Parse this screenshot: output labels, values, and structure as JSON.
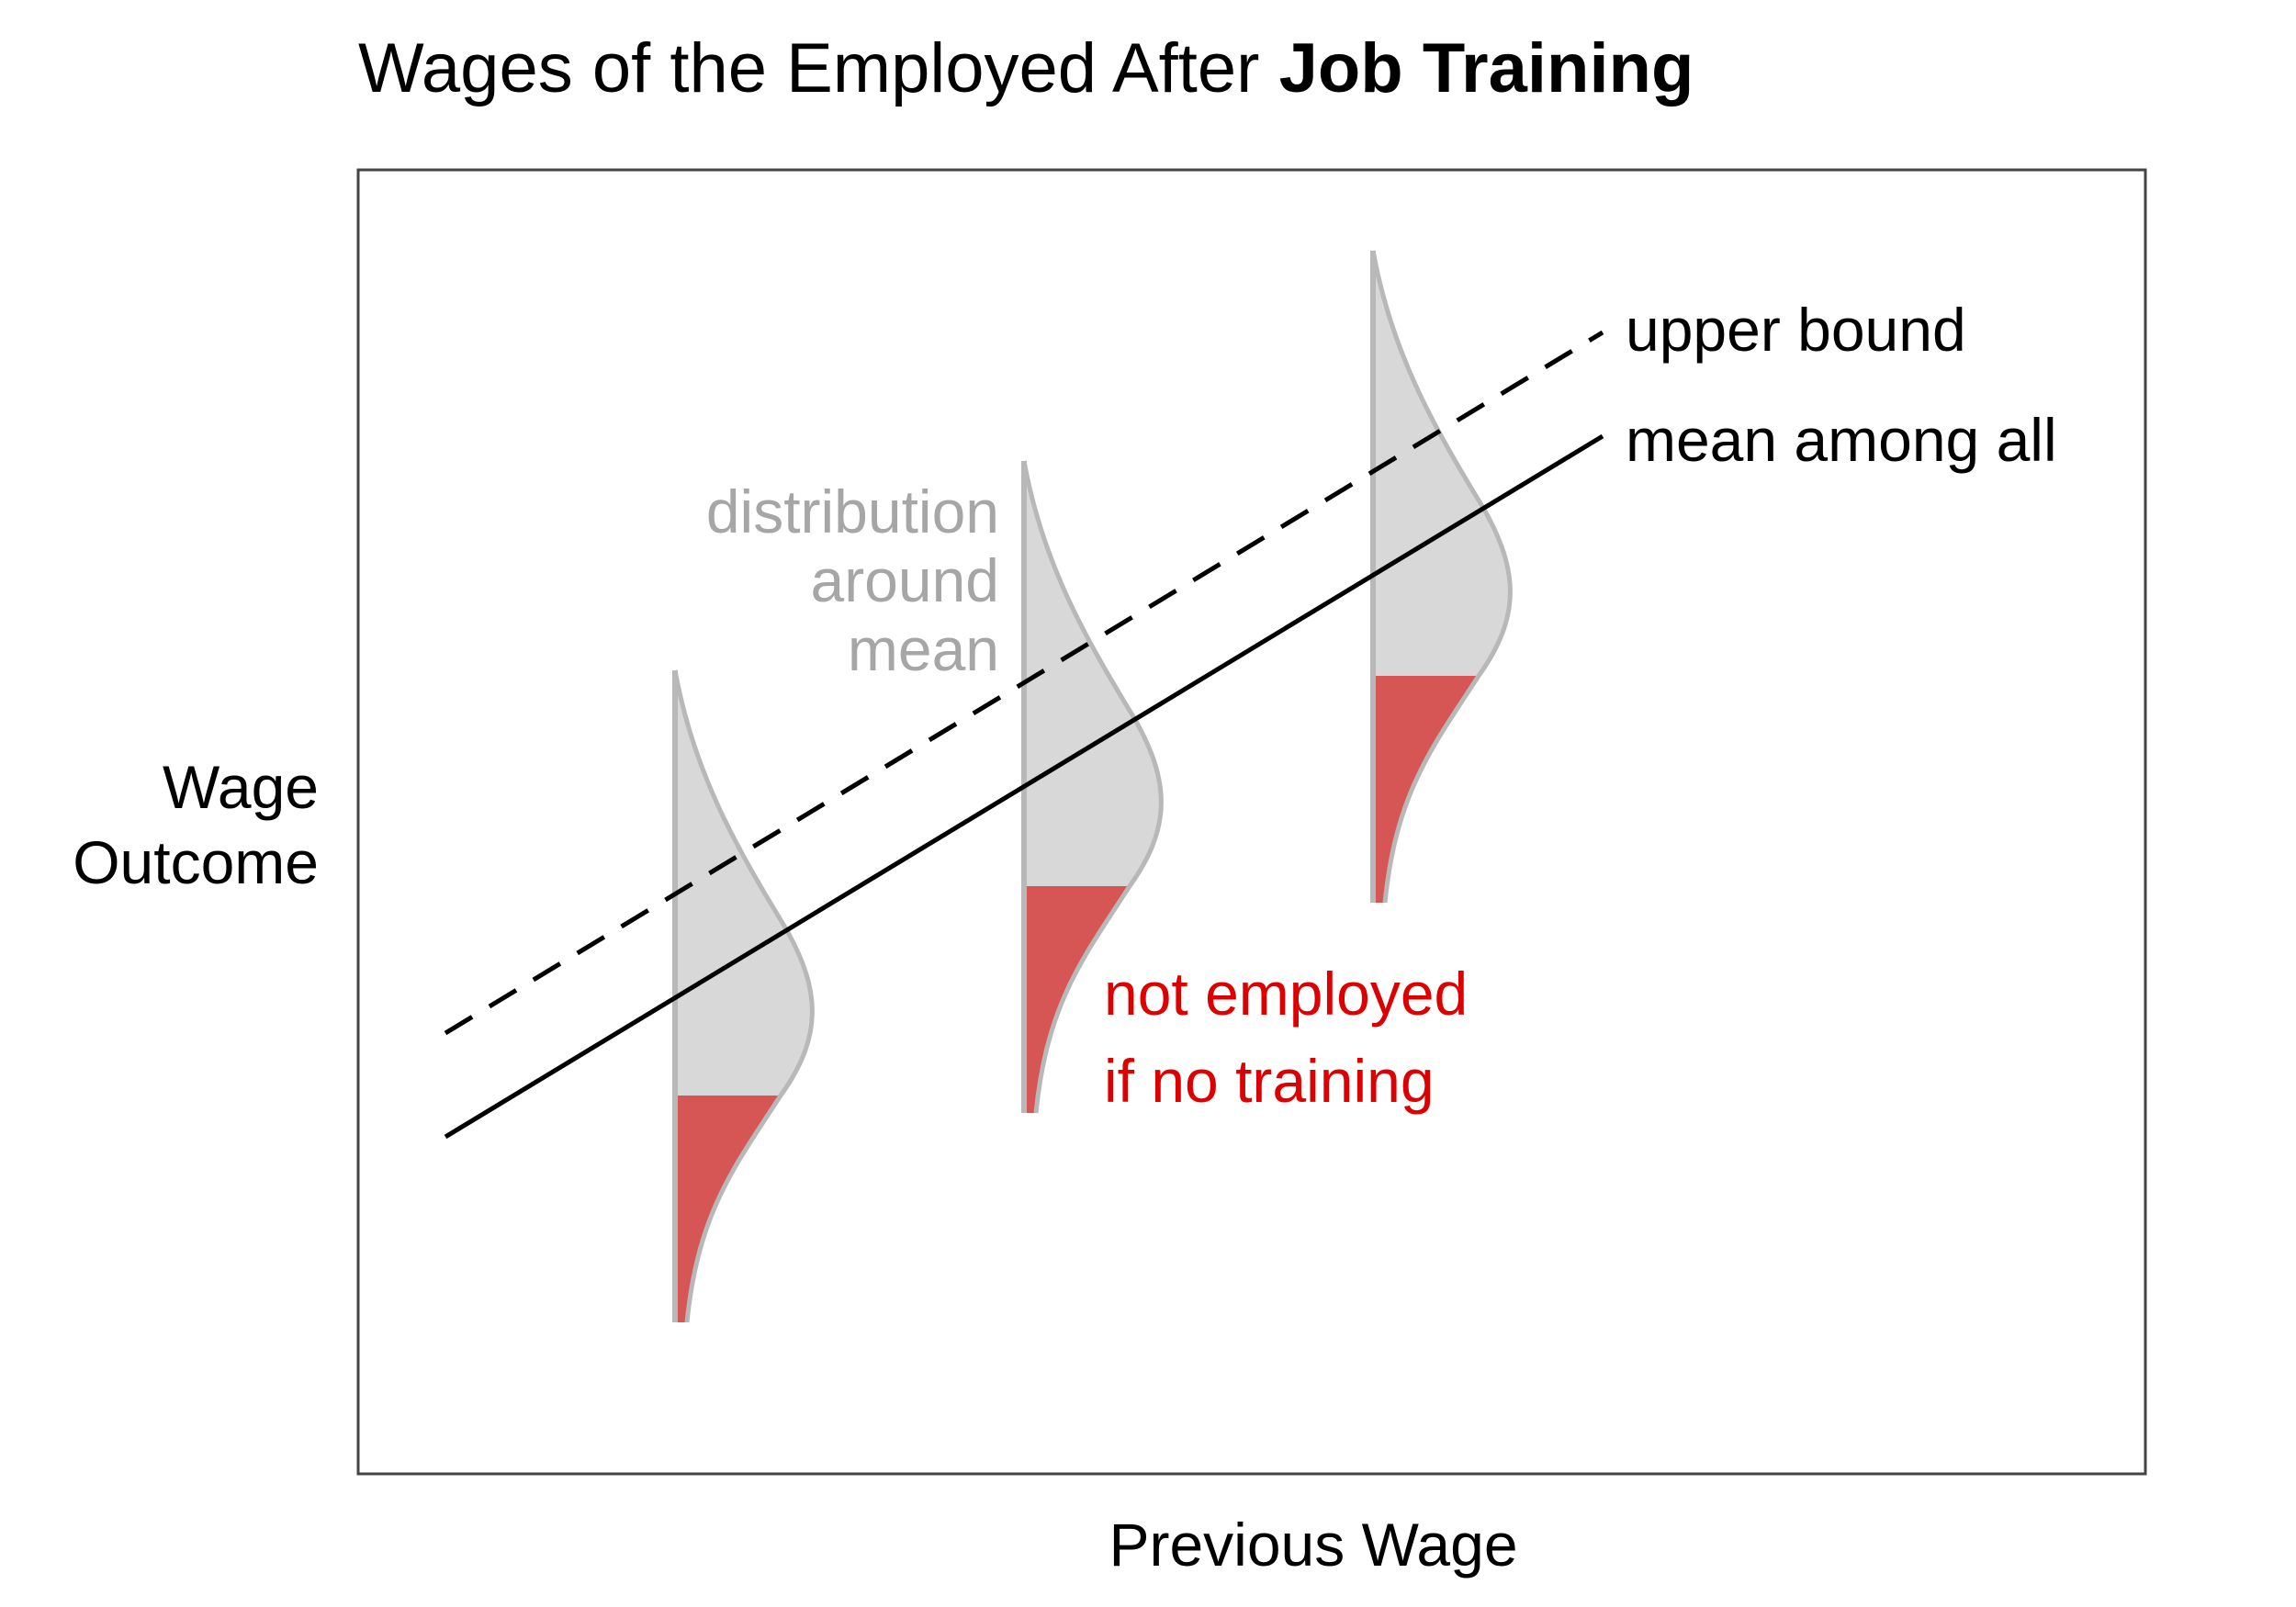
{
  "title": {
    "regular": "Wages of the Employed After ",
    "bold": "Job Training"
  },
  "axes": {
    "xlabel": "Previous Wage",
    "ylabel": [
      "Wage",
      "Outcome"
    ]
  },
  "lines": [
    {
      "name": "upper bound",
      "style": "dashed",
      "color": "#000000"
    },
    {
      "name": "mean among all",
      "style": "solid",
      "color": "#000000"
    }
  ],
  "annotations": {
    "distribution": [
      "distribution",
      "around",
      "mean"
    ],
    "not_employed": [
      "not employed",
      "if no training"
    ]
  },
  "colors": {
    "distribution_fill": "#d8d8d8",
    "distribution_stroke": "#b8b8b8",
    "not_employed_fill": "#d65555",
    "not_employed_text": "#dd0000",
    "annotation_gray": "#a6a6a6",
    "frame": "#444444"
  },
  "distributions_count": 3
}
